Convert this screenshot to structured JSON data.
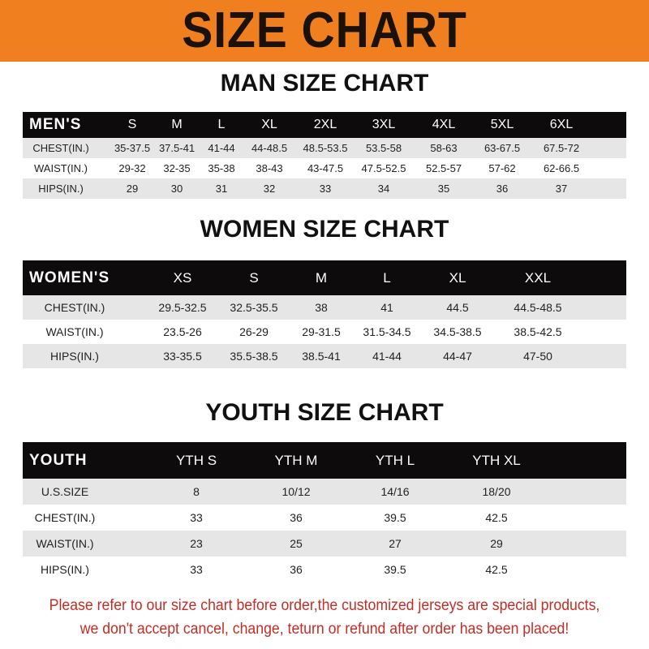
{
  "banner": {
    "title": "SIZE CHART",
    "color": "#ef7f1f"
  },
  "men": {
    "title": "MAN SIZE CHART",
    "header": [
      "MEN'S",
      "S",
      "M",
      "L",
      "XL",
      "2XL",
      "3XL",
      "4XL",
      "5XL",
      "6XL"
    ],
    "rows": [
      [
        "CHEST(IN.)",
        "35-37.5",
        "37.5-41",
        "41-44",
        "44-48.5",
        "48.5-53.5",
        "53.5-58",
        "58-63",
        "63-67.5",
        "67.5-72"
      ],
      [
        "WAIST(IN.)",
        "29-32",
        "32-35",
        "35-38",
        "38-43",
        "43-47.5",
        "47.5-52.5",
        "52.5-57",
        "57-62",
        "62-66.5"
      ],
      [
        "HIPS(IN.)",
        "29",
        "30",
        "31",
        "32",
        "33",
        "34",
        "35",
        "36",
        "37"
      ]
    ]
  },
  "women": {
    "title": "WOMEN SIZE CHART",
    "header": [
      "WOMEN'S",
      "XS",
      "S",
      "M",
      "L",
      "XL",
      "XXL"
    ],
    "rows": [
      [
        "CHEST(IN.)",
        "29.5-32.5",
        "32.5-35.5",
        "38",
        "41",
        "44.5",
        "44.5-48.5"
      ],
      [
        "WAIST(IN.)",
        "23.5-26",
        "26-29",
        "29-31.5",
        "31.5-34.5",
        "34.5-38.5",
        "38.5-42.5"
      ],
      [
        "HIPS(IN.)",
        "33-35.5",
        "35.5-38.5",
        "38.5-41",
        "41-44",
        "44-47",
        "47-50"
      ]
    ]
  },
  "youth": {
    "title": "YOUTH SIZE CHART",
    "header": [
      "YOUTH",
      "YTH S",
      "YTH M",
      "YTH L",
      "YTH XL"
    ],
    "rows": [
      [
        "U.S.SIZE",
        "8",
        "10/12",
        "14/16",
        "18/20"
      ],
      [
        "CHEST(IN.)",
        "33",
        "36",
        "39.5",
        "42.5"
      ],
      [
        "WAIST(IN.)",
        "23",
        "25",
        "27",
        "29"
      ],
      [
        "HIPS(IN.)",
        "33",
        "36",
        "39.5",
        "42.5"
      ]
    ]
  },
  "note": {
    "line1": "Please refer to our size chart before order,the customized jerseys are special products,",
    "line2": "we don't accept cancel, change, teturn or refund after order has been placed!",
    "color": "#c42d25"
  }
}
